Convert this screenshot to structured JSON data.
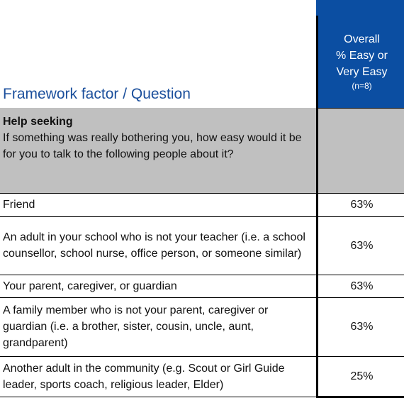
{
  "header": {
    "title": "Framework factor / Question",
    "column_header": [
      "Overall",
      "% Easy or",
      "Very Easy",
      "(n=8)"
    ]
  },
  "section": {
    "title": "Help seeking",
    "question": "If something was really bothering you, how easy would it be for you to talk to the following people about it?"
  },
  "table": {
    "rows": [
      [
        "Friend",
        "63%"
      ],
      [
        "An adult in your school who is not your teacher (i.e. a school counsellor, school nurse, office person, or someone similar)",
        "63%"
      ],
      [
        "Your parent, caregiver, or guardian",
        "63%"
      ],
      [
        "A family member who is not your parent, caregiver or guardian (i.e. a brother, sister, cousin, uncle, aunt, grandparent)",
        "63%"
      ],
      [
        "Another adult in the community (e.g. Scout or Girl Guide leader, sports coach, religious leader, Elder)",
        "25%"
      ]
    ]
  }
}
